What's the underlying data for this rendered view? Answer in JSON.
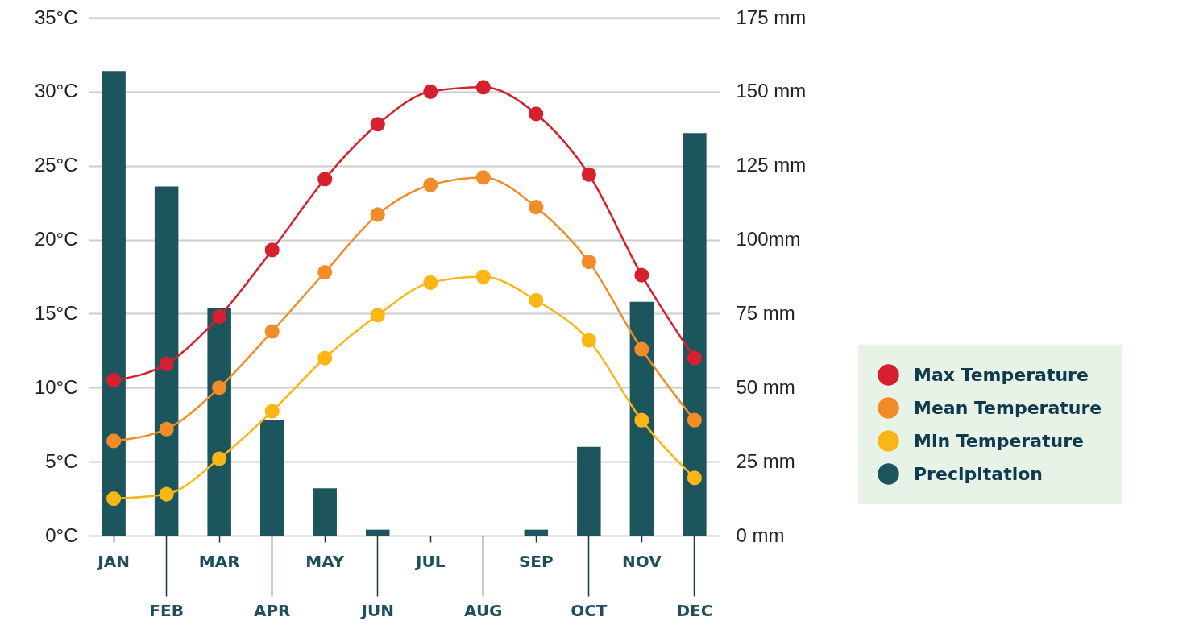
{
  "chart_data": {
    "type": "line",
    "categories": [
      "JAN",
      "FEB",
      "MAR",
      "APR",
      "MAY",
      "JUN",
      "JUL",
      "AUG",
      "SEP",
      "OCT",
      "NOV",
      "DEC"
    ],
    "series": [
      {
        "name": "Max Temperature",
        "color": "#d7202f",
        "values": [
          10.5,
          11.6,
          14.8,
          19.3,
          24.1,
          27.8,
          30.0,
          30.3,
          28.5,
          24.4,
          17.6,
          12.0
        ]
      },
      {
        "name": "Mean Temperature",
        "color": "#f28c28",
        "values": [
          6.4,
          7.2,
          10.0,
          13.8,
          17.8,
          21.7,
          23.7,
          24.2,
          22.2,
          18.5,
          12.6,
          7.8
        ]
      },
      {
        "name": "Min Temperature",
        "color": "#fbb615",
        "values": [
          2.5,
          2.8,
          5.2,
          8.4,
          12.0,
          14.9,
          17.1,
          17.5,
          15.9,
          13.2,
          7.8,
          3.9
        ]
      },
      {
        "name": "Precipitation",
        "type": "bar",
        "axis": "y2",
        "color": "#1d555c",
        "values": [
          157,
          118,
          77,
          39,
          16,
          2,
          0,
          0,
          2,
          30,
          79,
          136
        ]
      }
    ],
    "ylim": [
      0,
      35
    ],
    "yticks": [
      {
        "value": 0,
        "label": "0°C"
      },
      {
        "value": 5,
        "label": "5°C"
      },
      {
        "value": 10,
        "label": "10°C"
      },
      {
        "value": 15,
        "label": "15°C"
      },
      {
        "value": 20,
        "label": "20°C"
      },
      {
        "value": 25,
        "label": "25°C"
      },
      {
        "value": 30,
        "label": "30°C"
      },
      {
        "value": 35,
        "label": "35°C"
      }
    ],
    "y2lim": [
      0,
      175
    ],
    "y2ticks": [
      {
        "value": 0,
        "label": "0 mm"
      },
      {
        "value": 25,
        "label": "25 mm"
      },
      {
        "value": 50,
        "label": "50 mm"
      },
      {
        "value": 75,
        "label": "75 mm"
      },
      {
        "value": 100,
        "label": "100mm"
      },
      {
        "value": 125,
        "label": "125 mm"
      },
      {
        "value": 150,
        "label": "150 mm"
      },
      {
        "value": 175,
        "label": "175 mm"
      }
    ],
    "grid": "y",
    "legend": "right",
    "marker": "circle",
    "line_style": "solid"
  }
}
